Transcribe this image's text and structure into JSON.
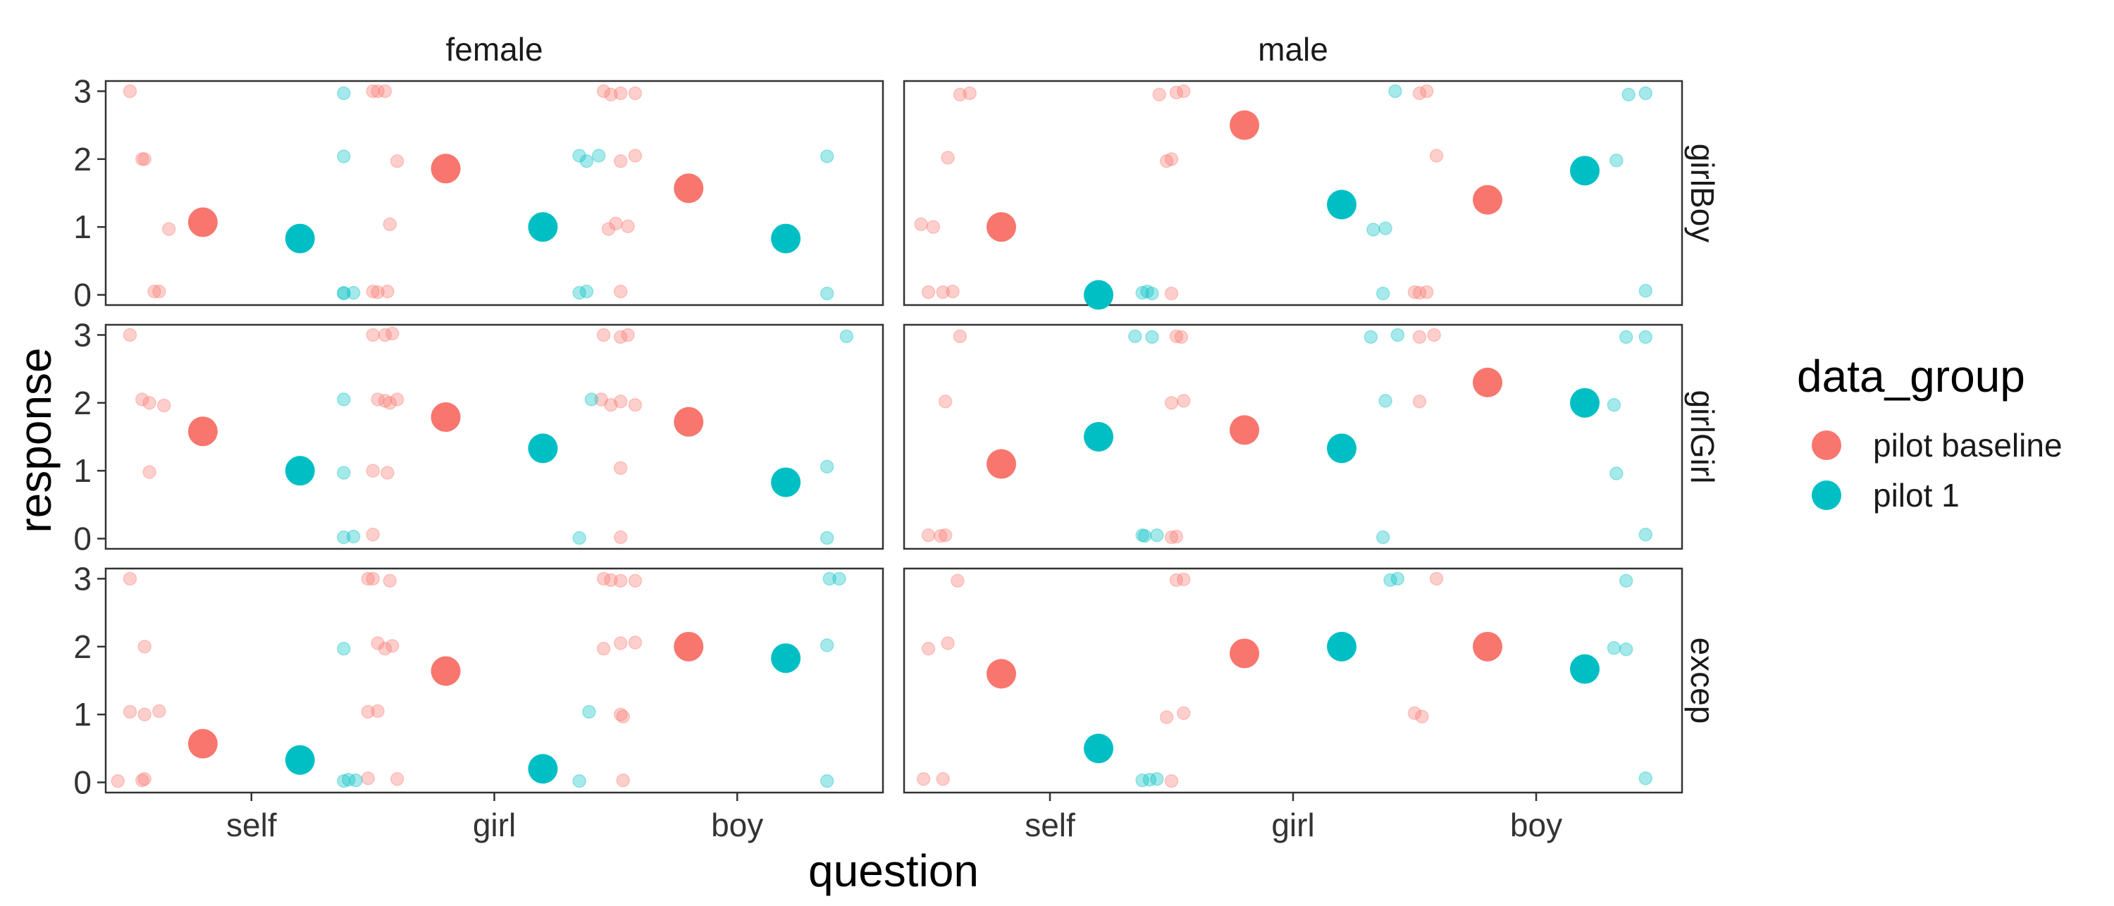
{
  "chart_data": {
    "type": "scatter",
    "xlabel": "question",
    "ylabel": "response",
    "categories": [
      "self",
      "girl",
      "boy"
    ],
    "y_ticks": [
      "0",
      "1",
      "2",
      "3"
    ],
    "ylim": [
      -0.15,
      3.15
    ],
    "grid": false,
    "facet_columns": [
      "female",
      "male"
    ],
    "facet_rows": [
      "girlBoy",
      "girlGirl",
      "excep"
    ],
    "legend": {
      "title": "data_group",
      "position": "right",
      "entries": [
        {
          "label": "pilot baseline",
          "color": "#F8766D"
        },
        {
          "label": "pilot 1",
          "color": "#00BFC4"
        }
      ]
    },
    "series": [
      {
        "name": "pilot baseline",
        "color": "#F8766D"
      },
      {
        "name": "pilot 1",
        "color": "#00BFC4"
      }
    ],
    "panels": [
      {
        "col": "female",
        "row": "girlBoy",
        "means": {
          "pilot baseline": [
            1.07,
            1.86,
            1.57
          ],
          "pilot 1": [
            0.83,
            1.0,
            0.83
          ]
        },
        "points": {
          "pilot baseline": [
            [
              0.5,
              3
            ],
            [
              0.55,
              2
            ],
            [
              0.56,
              2
            ],
            [
              0.6,
              0.05
            ],
            [
              0.62,
              0.05
            ],
            [
              0.66,
              0.97
            ],
            [
              1.5,
              3
            ],
            [
              1.52,
              3
            ],
            [
              1.55,
              3
            ],
            [
              1.5,
              0.05
            ],
            [
              1.52,
              0.04
            ],
            [
              1.56,
              0.05
            ],
            [
              1.57,
              1.04
            ],
            [
              1.6,
              1.97
            ],
            [
              2.45,
              3
            ],
            [
              2.48,
              2.95
            ],
            [
              2.52,
              2.97
            ],
            [
              2.58,
              2.97
            ],
            [
              2.5,
              1.05
            ],
            [
              2.47,
              0.97
            ],
            [
              2.55,
              1.01
            ],
            [
              2.52,
              1.97
            ],
            [
              2.58,
              2.05
            ],
            [
              2.52,
              0.05
            ]
          ],
          "pilot 1": [
            [
              1.38,
              2.97
            ],
            [
              1.38,
              2.04
            ],
            [
              1.38,
              0.02
            ],
            [
              1.42,
              0.03
            ],
            [
              1.38,
              0.03
            ],
            [
              2.35,
              2.05
            ],
            [
              2.38,
              1.97
            ],
            [
              2.43,
              2.05
            ],
            [
              2.35,
              0.03
            ],
            [
              2.38,
              0.05
            ],
            [
              3.37,
              2.04
            ],
            [
              3.37,
              0.02
            ]
          ]
        }
      },
      {
        "col": "female",
        "row": "girlGirl",
        "means": {
          "pilot baseline": [
            1.58,
            1.79,
            1.72
          ],
          "pilot 1": [
            1.0,
            1.33,
            0.83
          ]
        },
        "points": {
          "pilot baseline": [
            [
              0.5,
              3
            ],
            [
              0.55,
              2.05
            ],
            [
              0.58,
              2
            ],
            [
              0.64,
              1.96
            ],
            [
              0.58,
              0.98
            ],
            [
              1.5,
              3
            ],
            [
              1.52,
              2.05
            ],
            [
              1.55,
              2.03
            ],
            [
              1.57,
              2
            ],
            [
              1.6,
              2.05
            ],
            [
              1.5,
              1
            ],
            [
              1.56,
              0.97
            ],
            [
              1.5,
              0.06
            ],
            [
              1.55,
              3
            ],
            [
              1.58,
              3.02
            ],
            [
              2.45,
              3
            ],
            [
              2.52,
              2.97
            ],
            [
              2.55,
              3
            ],
            [
              2.44,
              2.05
            ],
            [
              2.48,
              1.97
            ],
            [
              2.52,
              2.02
            ],
            [
              2.58,
              1.97
            ],
            [
              2.52,
              1.04
            ],
            [
              2.52,
              0.02
            ]
          ],
          "pilot 1": [
            [
              1.38,
              2.05
            ],
            [
              1.38,
              0.97
            ],
            [
              1.38,
              0.02
            ],
            [
              1.42,
              0.03
            ],
            [
              2.4,
              2.05
            ],
            [
              2.35,
              0.01
            ],
            [
              3.45,
              2.98
            ],
            [
              3.37,
              1.06
            ],
            [
              3.37,
              0.01
            ]
          ]
        }
      },
      {
        "col": "female",
        "row": "excep",
        "means": {
          "pilot baseline": [
            0.57,
            1.64,
            2.0
          ],
          "pilot 1": [
            0.33,
            0.2,
            1.83
          ]
        },
        "points": {
          "pilot baseline": [
            [
              0.5,
              3
            ],
            [
              0.56,
              2.0
            ],
            [
              0.5,
              1.04
            ],
            [
              0.56,
              1.0
            ],
            [
              0.62,
              1.05
            ],
            [
              0.45,
              0.02
            ],
            [
              0.55,
              0.03
            ],
            [
              0.56,
              0.05
            ],
            [
              1.48,
              3
            ],
            [
              1.5,
              3
            ],
            [
              1.57,
              2.97
            ],
            [
              1.52,
              2.05
            ],
            [
              1.55,
              1.97
            ],
            [
              1.58,
              2.01
            ],
            [
              1.48,
              1.04
            ],
            [
              1.52,
              1.05
            ],
            [
              1.48,
              0.06
            ],
            [
              1.6,
              0.05
            ],
            [
              2.45,
              3
            ],
            [
              2.48,
              2.98
            ],
            [
              2.52,
              2.97
            ],
            [
              2.58,
              2.97
            ],
            [
              2.45,
              1.97
            ],
            [
              2.52,
              2.05
            ],
            [
              2.58,
              2.06
            ],
            [
              2.52,
              1.0
            ],
            [
              2.53,
              0.97
            ],
            [
              2.53,
              0.03
            ]
          ],
          "pilot 1": [
            [
              1.38,
              1.97
            ],
            [
              1.38,
              0.02
            ],
            [
              1.4,
              0.04
            ],
            [
              1.43,
              0.03
            ],
            [
              2.39,
              1.04
            ],
            [
              2.35,
              0.02
            ],
            [
              3.38,
              3
            ],
            [
              3.42,
              3
            ],
            [
              3.37,
              2.02
            ],
            [
              3.37,
              0.02
            ]
          ]
        }
      },
      {
        "col": "male",
        "row": "girlBoy",
        "means": {
          "pilot baseline": [
            1.0,
            2.5,
            1.4
          ],
          "pilot 1": [
            0.0,
            1.33,
            1.83
          ]
        },
        "points": {
          "pilot baseline": [
            [
              0.63,
              2.95
            ],
            [
              0.67,
              2.97
            ],
            [
              0.58,
              2.02
            ],
            [
              0.47,
              1.04
            ],
            [
              0.52,
              1.0
            ],
            [
              0.5,
              0.04
            ],
            [
              0.56,
              0.04
            ],
            [
              0.6,
              0.05
            ],
            [
              1.45,
              2.95
            ],
            [
              1.52,
              2.98
            ],
            [
              1.55,
              3
            ],
            [
              1.48,
              1.97
            ],
            [
              1.5,
              2.0
            ],
            [
              1.5,
              0.02
            ],
            [
              2.52,
              2.97
            ],
            [
              2.55,
              3
            ],
            [
              2.59,
              2.05
            ],
            [
              2.5,
              0.04
            ],
            [
              2.52,
              0.03
            ],
            [
              2.55,
              0.04
            ]
          ],
          "pilot 1": [
            [
              1.38,
              0.03
            ],
            [
              1.42,
              0.02
            ],
            [
              1.4,
              0.05
            ],
            [
              2.42,
              3
            ],
            [
              2.33,
              0.96
            ],
            [
              2.38,
              0.98
            ],
            [
              2.37,
              0.02
            ],
            [
              3.33,
              1.98
            ],
            [
              3.38,
              2.95
            ],
            [
              3.45,
              2.97
            ],
            [
              3.45,
              0.06
            ]
          ]
        }
      },
      {
        "col": "male",
        "row": "girlGirl",
        "means": {
          "pilot baseline": [
            1.1,
            1.6,
            2.3
          ],
          "pilot 1": [
            1.5,
            1.33,
            2.0
          ]
        },
        "points": {
          "pilot baseline": [
            [
              0.63,
              2.98
            ],
            [
              0.57,
              2.02
            ],
            [
              0.5,
              0.05
            ],
            [
              0.55,
              0.04
            ],
            [
              0.57,
              0.05
            ],
            [
              1.52,
              2.98
            ],
            [
              1.54,
              2.97
            ],
            [
              1.5,
              2.0
            ],
            [
              1.55,
              2.03
            ],
            [
              1.5,
              0.02
            ],
            [
              1.52,
              0.03
            ],
            [
              2.52,
              2.97
            ],
            [
              2.58,
              3
            ],
            [
              2.52,
              2.02
            ]
          ],
          "pilot 1": [
            [
              1.35,
              2.98
            ],
            [
              1.42,
              2.97
            ],
            [
              1.38,
              0.05
            ],
            [
              1.39,
              0.04
            ],
            [
              1.44,
              0.05
            ],
            [
              2.32,
              2.97
            ],
            [
              2.43,
              3
            ],
            [
              2.38,
              2.03
            ],
            [
              2.37,
              0.02
            ],
            [
              3.37,
              2.97
            ],
            [
              3.45,
              2.97
            ],
            [
              3.32,
              1.97
            ],
            [
              3.33,
              0.96
            ],
            [
              3.45,
              0.06
            ]
          ]
        }
      },
      {
        "col": "male",
        "row": "excep",
        "means": {
          "pilot baseline": [
            1.6,
            1.9,
            2.0
          ],
          "pilot 1": [
            0.5,
            2.0,
            1.67
          ]
        },
        "points": {
          "pilot baseline": [
            [
              0.62,
              2.97
            ],
            [
              0.58,
              2.05
            ],
            [
              0.5,
              1.97
            ],
            [
              0.48,
              0.05
            ],
            [
              0.56,
              0.05
            ],
            [
              1.52,
              2.98
            ],
            [
              1.55,
              2.99
            ],
            [
              1.48,
              0.96
            ],
            [
              1.55,
              1.02
            ],
            [
              1.5,
              0.02
            ],
            [
              2.59,
              3
            ],
            [
              2.5,
              1.02
            ],
            [
              2.53,
              0.97
            ]
          ],
          "pilot 1": [
            [
              1.38,
              0.03
            ],
            [
              1.41,
              0.04
            ],
            [
              1.44,
              0.05
            ],
            [
              2.4,
              2.98
            ],
            [
              2.43,
              3
            ],
            [
              3.37,
              2.97
            ],
            [
              3.32,
              1.98
            ],
            [
              3.37,
              1.96
            ],
            [
              3.45,
              0.06
            ]
          ]
        }
      }
    ]
  }
}
